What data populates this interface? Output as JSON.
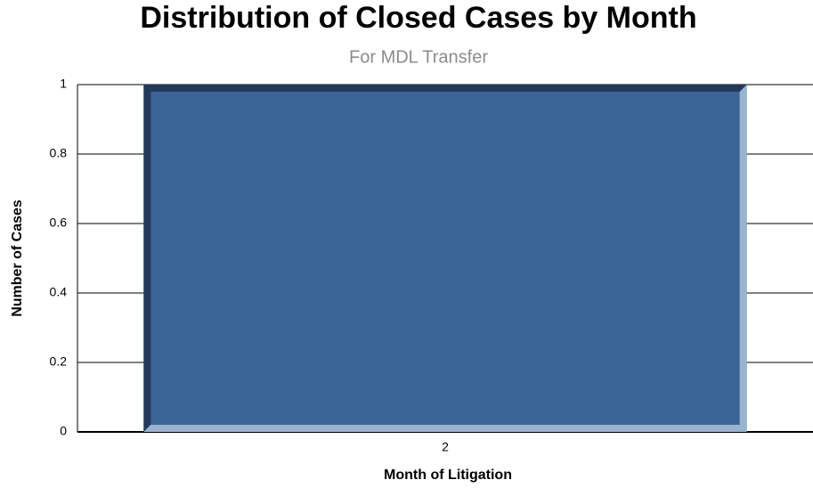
{
  "chart_data": {
    "type": "bar",
    "title": "Distribution of Closed Cases by Month",
    "subtitle": "For MDL Transfer",
    "x_label": "Month of Litigation",
    "y_label": "Number of Cases",
    "categories": [
      "2"
    ],
    "values": [
      1
    ],
    "color": "#3a6496",
    "ylim": [
      0,
      1
    ],
    "yticks": [
      0,
      0.2,
      0.4,
      0.6,
      0.8,
      1
    ],
    "grid": true
  }
}
